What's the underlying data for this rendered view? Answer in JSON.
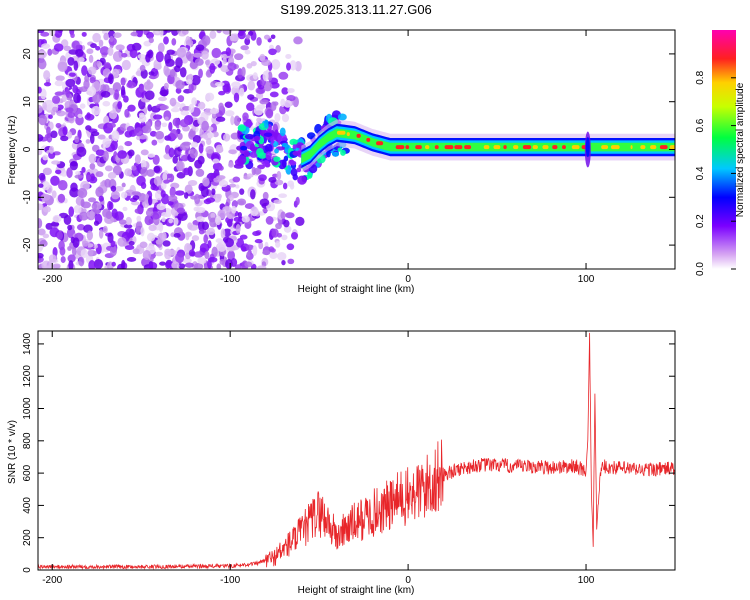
{
  "title": "S199.2025.313.11.27.G06",
  "chart_data": [
    {
      "type": "heatmap",
      "title": "S199.2025.313.11.27.G06",
      "xlabel": "Height of straight line (km)",
      "ylabel": "Frequency (Hz)",
      "xlim": [
        -208,
        150
      ],
      "ylim": [
        -25,
        25
      ],
      "xticks": [
        -200,
        -100,
        0,
        100
      ],
      "yticks": [
        -20,
        -10,
        0,
        10,
        20
      ],
      "colorbar": {
        "label": "Normalized spectral amplitude",
        "range": [
          0.0,
          1.0
        ],
        "ticks": [
          0.0,
          0.2,
          0.4,
          0.6,
          0.8
        ],
        "tick_labels": [
          "0.0",
          "0.2",
          "0.4",
          "0.6",
          "0.8"
        ]
      },
      "ridge": {
        "x": [
          -80,
          -70,
          -60,
          -55,
          -50,
          -45,
          -40,
          -30,
          -20,
          -10,
          0,
          10,
          20,
          40,
          60,
          80,
          95,
          100,
          105,
          120,
          150
        ],
        "frequency": [
          1,
          0,
          -2,
          -1,
          1,
          2.5,
          3.5,
          3,
          1.5,
          0.5,
          0.5,
          0.5,
          0.5,
          0.5,
          0.5,
          0.5,
          0.5,
          0.5,
          0.5,
          0.5,
          0.5
        ]
      }
    },
    {
      "type": "line",
      "xlabel": "Height of straight line (km)",
      "ylabel": "SNR (10 * v/v)",
      "xlim": [
        -208,
        150
      ],
      "ylim": [
        0,
        1480
      ],
      "xticks": [
        -200,
        -100,
        0,
        100
      ],
      "yticks": [
        0,
        200,
        400,
        600,
        800,
        1000,
        1200,
        1400
      ],
      "color": "#e8262a",
      "series": [
        {
          "name": "SNR",
          "x": [
            -208,
            -150,
            -100,
            -85,
            -75,
            -70,
            -65,
            -60,
            -55,
            -50,
            -45,
            -40,
            -35,
            -30,
            -20,
            -10,
            -5,
            0,
            5,
            10,
            15,
            20,
            30,
            40,
            50,
            60,
            70,
            80,
            90,
            95,
            100,
            101,
            102,
            103,
            104,
            105,
            106,
            108,
            110,
            120,
            130,
            140,
            150
          ],
          "y": [
            20,
            20,
            25,
            40,
            80,
            130,
            180,
            230,
            300,
            360,
            300,
            200,
            260,
            290,
            350,
            400,
            440,
            450,
            480,
            510,
            560,
            590,
            630,
            650,
            650,
            640,
            640,
            635,
            640,
            645,
            600,
            800,
            1460,
            500,
            150,
            1100,
            250,
            600,
            640,
            630,
            620,
            625,
            630
          ]
        }
      ]
    }
  ]
}
